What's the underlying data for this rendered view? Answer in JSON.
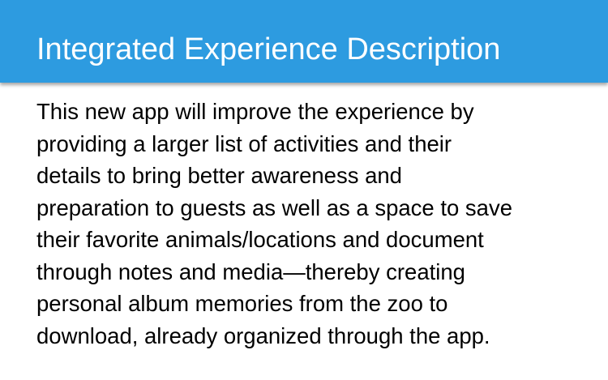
{
  "slide": {
    "title": "Integrated Experience Description",
    "body_lines": [
      "This new app will improve the experience by",
      "providing a larger list of activities and their",
      "details to bring better awareness and",
      "preparation to guests as well as a space to save",
      "their favorite animals/locations and document",
      "through notes and media—thereby creating",
      "personal album memories from the zoo to",
      "download, already organized through the app."
    ]
  },
  "colors": {
    "title_bar": "#2d9be0",
    "title_text": "#ffffff",
    "body_text": "#000000",
    "background": "#ffffff"
  }
}
